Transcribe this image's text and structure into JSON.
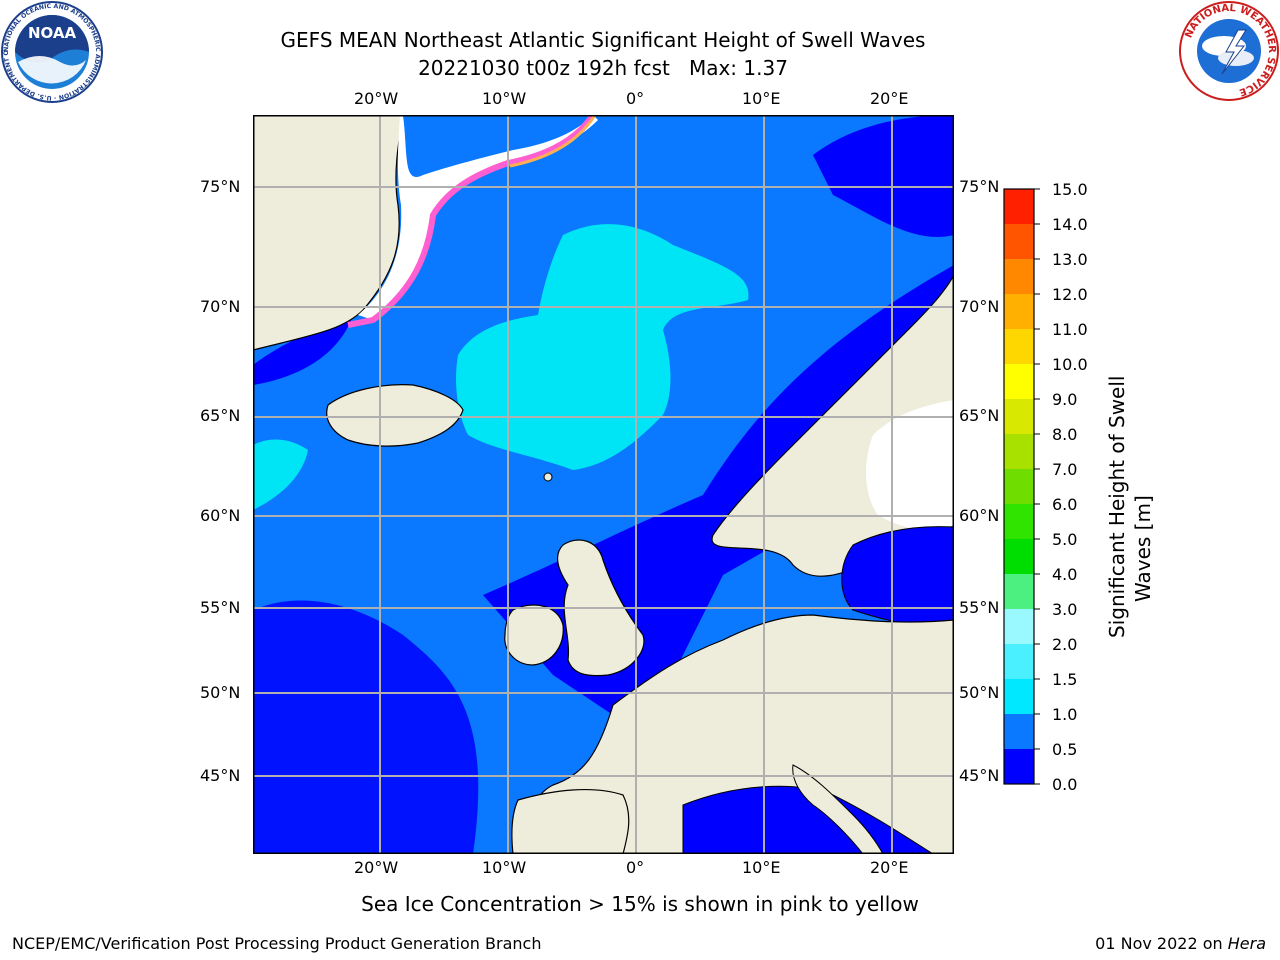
{
  "title": {
    "line1": "GEFS MEAN Northeast Atlantic Significant Height of Swell Waves",
    "line2": "20221030 t00z 192h fcst   Max: 1.37"
  },
  "map": {
    "lon_labels": [
      "20°W",
      "10°W",
      "0°",
      "10°E",
      "20°E"
    ],
    "lat_labels": [
      "75°N",
      "70°N",
      "65°N",
      "60°N",
      "55°N",
      "50°N",
      "45°N"
    ],
    "colors": {
      "land": "#eeeddc",
      "ocean_low": "#0000ff",
      "ocean_mid": "#0a78ff",
      "ocean_high": "#00e5f5",
      "ice": "#ffffff",
      "gridlines": "#b0b0b0"
    }
  },
  "colorbar": {
    "label": "Significant Height of Swell Waves [m]",
    "ticks": [
      "0.0",
      "0.5",
      "1.0",
      "1.5",
      "2.0",
      "3.0",
      "4.0",
      "5.0",
      "6.0",
      "7.0",
      "8.0",
      "9.0",
      "10.0",
      "11.0",
      "12.0",
      "13.0",
      "14.0",
      "15.0"
    ],
    "colors": [
      "#0000ff",
      "#0a78ff",
      "#00e8ff",
      "#4af0ff",
      "#9af8ff",
      "#4cf080",
      "#00dd00",
      "#30e400",
      "#70dd00",
      "#a8e000",
      "#d8e800",
      "#ffff00",
      "#ffd700",
      "#ffb000",
      "#ff8800",
      "#ff5500",
      "#ff2000"
    ]
  },
  "caption": "Sea Ice Concentration > 15% is shown in pink to yellow",
  "footer": {
    "left": "NCEP/EMC/Verification Post Processing Product Generation Branch",
    "date": "01 Nov 2022 on ",
    "machine": "Hera"
  },
  "logos": {
    "noaa": {
      "text": "NOAA",
      "ring": "NATIONAL OCEANIC AND ATMOSPHERIC ADMINISTRATION · U.S. DEPARTMENT OF COMMERCE ·"
    },
    "nws": {
      "ring": "NATIONAL WEATHER SERVICE"
    }
  }
}
